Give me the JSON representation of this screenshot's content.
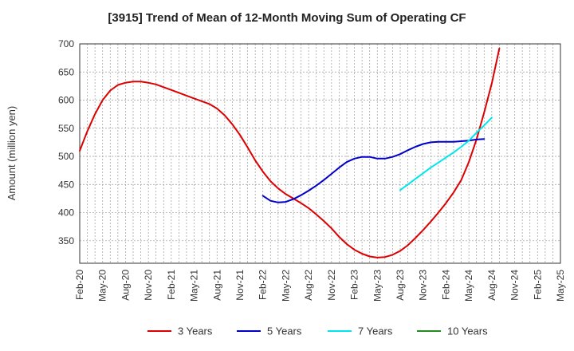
{
  "chart_data": {
    "type": "line",
    "title": "[3915]  Trend of Mean of 12-Month Moving Sum of Operating CF",
    "xlabel": "",
    "ylabel": "Amount (million yen)",
    "ylim": [
      310,
      700
    ],
    "yticks": [
      350,
      400,
      450,
      500,
      550,
      600,
      650,
      700
    ],
    "x_ticks": [
      "Feb-20",
      "May-20",
      "Aug-20",
      "Nov-20",
      "Feb-21",
      "May-21",
      "Aug-21",
      "Nov-21",
      "Feb-22",
      "May-22",
      "Aug-22",
      "Nov-22",
      "Feb-23",
      "May-23",
      "Aug-23",
      "Nov-23",
      "Feb-24",
      "May-24",
      "Aug-24",
      "Nov-24",
      "Feb-25",
      "May-25"
    ],
    "grid": true,
    "legend_position": "bottom",
    "series": [
      {
        "name": "3 Years",
        "color": "#dd0000",
        "points": [
          [
            "Feb-20",
            510
          ],
          [
            "Mar-20",
            545
          ],
          [
            "Apr-20",
            575
          ],
          [
            "May-20",
            600
          ],
          [
            "Jun-20",
            617
          ],
          [
            "Jul-20",
            627
          ],
          [
            "Aug-20",
            631
          ],
          [
            "Sep-20",
            633
          ],
          [
            "Oct-20",
            633
          ],
          [
            "Nov-20",
            631
          ],
          [
            "Dec-20",
            628
          ],
          [
            "Jan-21",
            623
          ],
          [
            "Feb-21",
            618
          ],
          [
            "Mar-21",
            613
          ],
          [
            "Apr-21",
            608
          ],
          [
            "May-21",
            603
          ],
          [
            "Jun-21",
            598
          ],
          [
            "Jul-21",
            593
          ],
          [
            "Aug-21",
            585
          ],
          [
            "Sep-21",
            573
          ],
          [
            "Oct-21",
            557
          ],
          [
            "Nov-21",
            538
          ],
          [
            "Dec-21",
            516
          ],
          [
            "Jan-22",
            493
          ],
          [
            "Feb-22",
            473
          ],
          [
            "Mar-22",
            456
          ],
          [
            "Apr-22",
            443
          ],
          [
            "May-22",
            433
          ],
          [
            "Jun-22",
            425
          ],
          [
            "Jul-22",
            417
          ],
          [
            "Aug-22",
            408
          ],
          [
            "Sep-22",
            397
          ],
          [
            "Oct-22",
            385
          ],
          [
            "Nov-22",
            372
          ],
          [
            "Dec-22",
            357
          ],
          [
            "Jan-23",
            344
          ],
          [
            "Feb-23",
            334
          ],
          [
            "Mar-23",
            327
          ],
          [
            "Apr-23",
            322
          ],
          [
            "May-23",
            320
          ],
          [
            "Jun-23",
            321
          ],
          [
            "Jul-23",
            325
          ],
          [
            "Aug-23",
            332
          ],
          [
            "Sep-23",
            342
          ],
          [
            "Oct-23",
            355
          ],
          [
            "Nov-23",
            369
          ],
          [
            "Dec-23",
            384
          ],
          [
            "Jan-24",
            400
          ],
          [
            "Feb-24",
            417
          ],
          [
            "Mar-24",
            436
          ],
          [
            "Apr-24",
            458
          ],
          [
            "May-24",
            490
          ],
          [
            "Jun-24",
            530
          ],
          [
            "Jul-24",
            578
          ],
          [
            "Aug-24",
            630
          ],
          [
            "Sep-24",
            692
          ]
        ]
      },
      {
        "name": "5 Years",
        "color": "#0000cc",
        "points": [
          [
            "Feb-22",
            430
          ],
          [
            "Mar-22",
            421
          ],
          [
            "Apr-22",
            418
          ],
          [
            "May-22",
            419
          ],
          [
            "Jun-22",
            424
          ],
          [
            "Jul-22",
            431
          ],
          [
            "Aug-22",
            439
          ],
          [
            "Sep-22",
            448
          ],
          [
            "Oct-22",
            458
          ],
          [
            "Nov-22",
            469
          ],
          [
            "Dec-22",
            480
          ],
          [
            "Jan-23",
            490
          ],
          [
            "Feb-23",
            496
          ],
          [
            "Mar-23",
            499
          ],
          [
            "Apr-23",
            499
          ],
          [
            "May-23",
            496
          ],
          [
            "Jun-23",
            496
          ],
          [
            "Jul-23",
            499
          ],
          [
            "Aug-23",
            504
          ],
          [
            "Sep-23",
            511
          ],
          [
            "Oct-23",
            517
          ],
          [
            "Nov-23",
            522
          ],
          [
            "Dec-23",
            525
          ],
          [
            "Jan-24",
            526
          ],
          [
            "Feb-24",
            526
          ],
          [
            "Mar-24",
            526
          ],
          [
            "Apr-24",
            527
          ],
          [
            "May-24",
            528
          ],
          [
            "Jun-24",
            530
          ],
          [
            "Jul-24",
            531
          ]
        ]
      },
      {
        "name": "7 Years",
        "color": "#00e5ee",
        "points": [
          [
            "Aug-23",
            440
          ],
          [
            "Sep-23",
            450
          ],
          [
            "Oct-23",
            460
          ],
          [
            "Nov-23",
            470
          ],
          [
            "Dec-23",
            480
          ],
          [
            "Jan-24",
            489
          ],
          [
            "Feb-24",
            498
          ],
          [
            "Mar-24",
            507
          ],
          [
            "Apr-24",
            517
          ],
          [
            "May-24",
            528
          ],
          [
            "Jun-24",
            542
          ],
          [
            "Jul-24",
            555
          ],
          [
            "Aug-24",
            569
          ]
        ]
      },
      {
        "name": "10 Years",
        "color": "#228b22",
        "points": []
      }
    ]
  }
}
